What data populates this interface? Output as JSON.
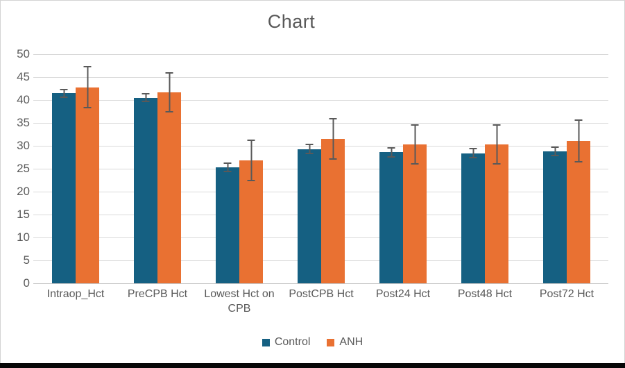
{
  "chart_data": {
    "type": "bar",
    "title": "Chart",
    "categories": [
      "Intraop_Hct",
      "PreCPB Hct",
      "Lowest Hct on CPB",
      "PostCPB Hct",
      "Post24 Hct",
      "Post48 Hct",
      "Post72 Hct"
    ],
    "series": [
      {
        "name": "Control",
        "color": "#156082",
        "values": [
          41.5,
          40.5,
          25.3,
          29.3,
          28.6,
          28.4,
          28.8
        ],
        "error_bars": [
          1.0,
          1.0,
          1.0,
          1.1,
          1.1,
          1.1,
          1.1
        ]
      },
      {
        "name": "ANH",
        "color": "#E97132",
        "values": [
          42.8,
          41.6,
          26.8,
          31.5,
          30.3,
          30.3,
          31.0
        ],
        "error_bars": [
          4.6,
          4.4,
          4.5,
          4.6,
          4.4,
          4.4,
          4.7
        ]
      }
    ],
    "xlabel": "",
    "ylabel": "",
    "ylim": [
      0,
      50
    ],
    "yticks": [
      0,
      5,
      10,
      15,
      20,
      25,
      30,
      35,
      40,
      45,
      50
    ],
    "grid": true,
    "legend_position": "bottom",
    "error_bar_color": "#595959",
    "axis_text_color": "#595959",
    "title_color": "#595959"
  }
}
